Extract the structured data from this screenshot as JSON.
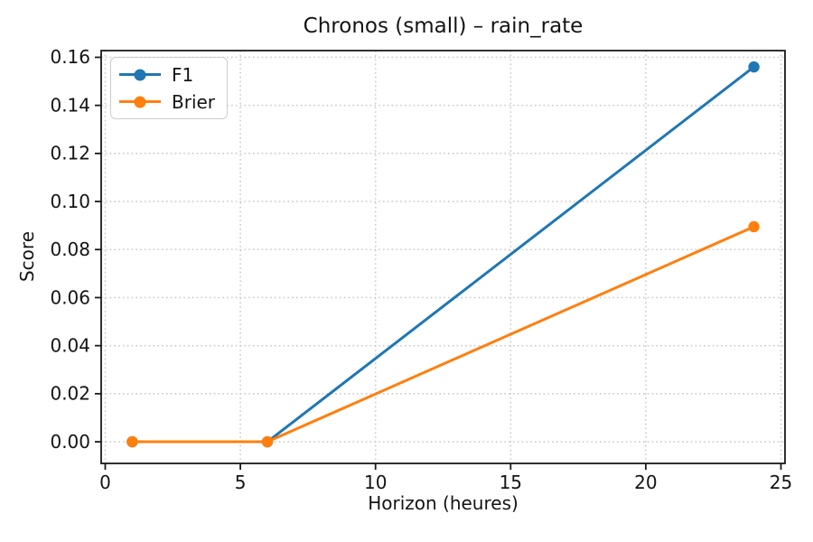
{
  "chart_data": {
    "type": "line",
    "title": "Chronos (small) – rain_rate",
    "xlabel": "Horizon (heures)",
    "ylabel": "Score",
    "x": [
      1,
      6,
      24
    ],
    "series": [
      {
        "name": "F1",
        "color": "#1f77b4",
        "values": [
          0.0,
          0.0,
          0.156
        ]
      },
      {
        "name": "Brier",
        "color": "#ff7f0e",
        "values": [
          0.0,
          0.0,
          0.0895
        ]
      }
    ],
    "x_ticks": [
      0,
      5,
      10,
      15,
      20,
      25
    ],
    "y_ticks": [
      0.0,
      0.02,
      0.04,
      0.06,
      0.08,
      0.1,
      0.12,
      0.14,
      0.16
    ],
    "x_tick_labels": [
      "0",
      "5",
      "10",
      "15",
      "20",
      "25"
    ],
    "y_tick_labels": [
      "0.00",
      "0.02",
      "0.04",
      "0.06",
      "0.08",
      "0.10",
      "0.12",
      "0.14",
      "0.16"
    ],
    "xlim": [
      -0.15,
      25.15
    ],
    "ylim": [
      -0.009,
      0.1628
    ],
    "grid": true,
    "grid_style": "dotted",
    "legend_position": "upper left",
    "marker": "circle",
    "colors": {
      "background": "#ffffff",
      "grid": "#cbcbcb",
      "spine": "#1a1a1a",
      "text": "#141414",
      "legend_border": "#cccccc"
    }
  }
}
